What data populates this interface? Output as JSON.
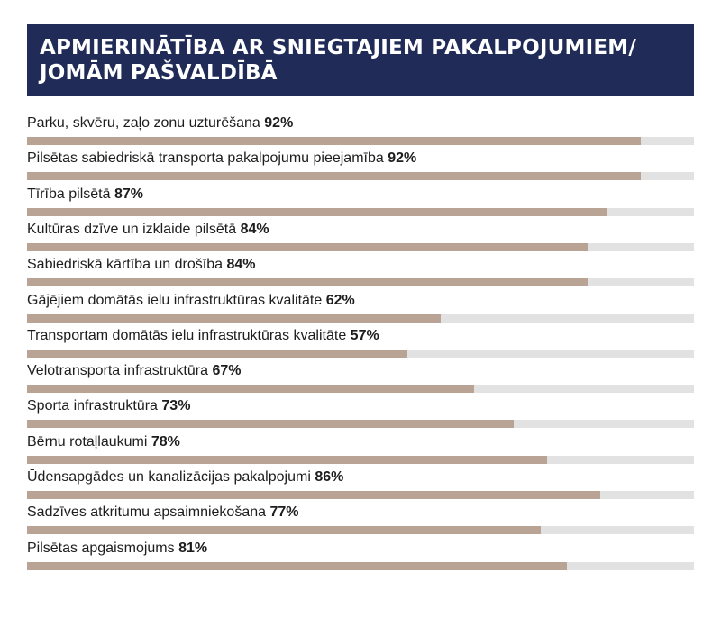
{
  "header": {
    "title_line1": "APMIERINĀTĪBA AR SNIEGTAJIEM PAKALPOJUMIEM/",
    "title_line2": "JOMĀM PAŠVALDĪBĀ"
  },
  "colors": {
    "header_bg": "#202c57",
    "bar_fill": "#b8a394",
    "bar_track": "#e2e2e2"
  },
  "chart_data": {
    "type": "bar",
    "orientation": "horizontal",
    "title": "APMIERINĀTĪBA AR SNIEGTAJIEM PAKALPOJUMIEM/ JOMĀM PAŠVALDĪBĀ",
    "xlim": [
      0,
      100
    ],
    "categories": [
      "Parku, skvēru, zaļo zonu uzturēšana",
      "Pilsētas sabiedriskā transporta pakalpojumu pieejamība",
      "Tīrība pilsētā",
      "Kultūras dzīve un izklaide pilsētā",
      "Sabiedriskā kārtība un drošība",
      "Gājējiem domātās ielu infrastruktūras kvalitāte",
      "Transportam domātās ielu infrastruktūras kvalitāte",
      "Velotransporta infrastruktūra",
      "Sporta infrastruktūra",
      "Bērnu rotaļlaukumi",
      "Ūdensapgādes un kanalizācijas pakalpojumi",
      "Sadzīves atkritumu apsaimniekošana",
      "Pilsētas apgaismojums"
    ],
    "values": [
      92,
      92,
      87,
      84,
      84,
      62,
      57,
      67,
      73,
      78,
      86,
      77,
      81
    ],
    "value_labels": [
      "92%",
      "92%",
      "87%",
      "84%",
      "84%",
      "62%",
      "57%",
      "67%",
      "73%",
      "78%",
      "86%",
      "77%",
      "81%"
    ]
  }
}
